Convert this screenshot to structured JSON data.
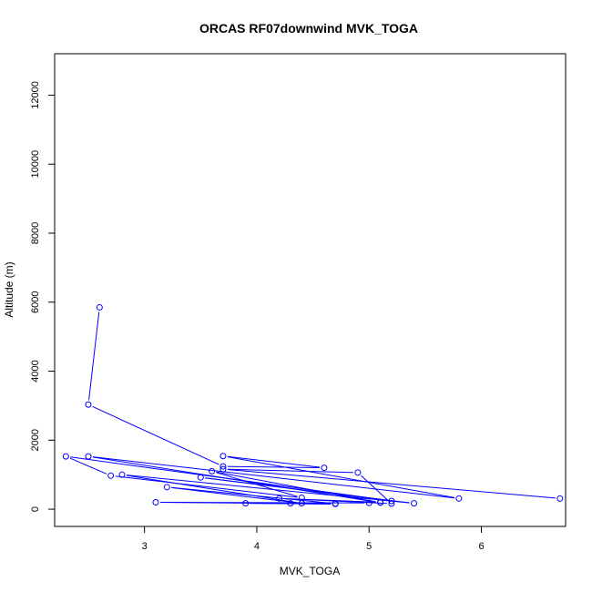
{
  "chart_data": {
    "type": "line",
    "title": "ORCAS RF07downwind MVK_TOGA",
    "xlabel": "MVK_TOGA",
    "ylabel": "Altitude (m)",
    "xlim": [
      2.2,
      6.75
    ],
    "ylim": [
      -500,
      13200
    ],
    "xticks": [
      3,
      4,
      5,
      6
    ],
    "yticks": [
      0,
      2000,
      4000,
      6000,
      8000,
      10000,
      12000
    ],
    "xtick_labels": [
      "3",
      "4",
      "5",
      "6"
    ],
    "ytick_labels": [
      "0",
      "2000",
      "4000",
      "6000",
      "8000",
      "10000",
      "12000"
    ],
    "series_color": "#0000ff",
    "points": [
      {
        "x": 2.6,
        "y": 5850
      },
      {
        "x": 2.5,
        "y": 3030
      },
      {
        "x": 3.7,
        "y": 1240
      },
      {
        "x": 4.6,
        "y": 1200
      },
      {
        "x": 3.7,
        "y": 1540
      },
      {
        "x": 5.8,
        "y": 310
      },
      {
        "x": 2.5,
        "y": 1530
      },
      {
        "x": 5.1,
        "y": 190
      },
      {
        "x": 3.6,
        "y": 1100
      },
      {
        "x": 4.4,
        "y": 330
      },
      {
        "x": 2.7,
        "y": 970
      },
      {
        "x": 2.3,
        "y": 1530
      },
      {
        "x": 5.2,
        "y": 240
      },
      {
        "x": 3.5,
        "y": 920
      },
      {
        "x": 5.4,
        "y": 170
      },
      {
        "x": 2.8,
        "y": 1000
      },
      {
        "x": 4.4,
        "y": 170
      },
      {
        "x": 3.2,
        "y": 640
      },
      {
        "x": 4.7,
        "y": 160
      },
      {
        "x": 4.3,
        "y": 170
      },
      {
        "x": 3.9,
        "y": 170
      },
      {
        "x": 4.7,
        "y": 150
      },
      {
        "x": 3.1,
        "y": 200
      },
      {
        "x": 5.0,
        "y": 180
      },
      {
        "x": 5.1,
        "y": 200
      },
      {
        "x": 4.2,
        "y": 310
      },
      {
        "x": 5.2,
        "y": 160
      },
      {
        "x": 4.9,
        "y": 1060
      },
      {
        "x": 3.7,
        "y": 1160
      },
      {
        "x": 6.7,
        "y": 310
      }
    ]
  }
}
